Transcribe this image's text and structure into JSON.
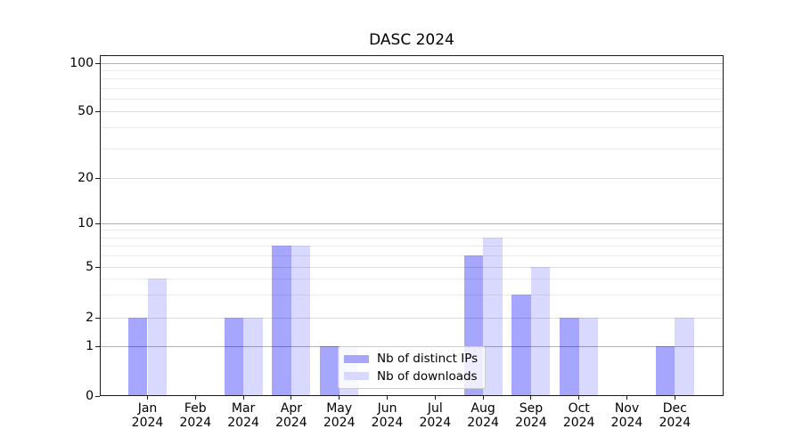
{
  "chart_data": {
    "type": "bar",
    "title": "DASC 2024",
    "categories": [
      "Jan",
      "Feb",
      "Mar",
      "Apr",
      "May",
      "Jun",
      "Jul",
      "Aug",
      "Sep",
      "Oct",
      "Nov",
      "Dec"
    ],
    "x_axis": {
      "year_line": "2024"
    },
    "y_axis": {
      "scale": "symlog-like",
      "ticks": [
        0,
        1,
        2,
        5,
        10,
        20,
        50,
        100
      ],
      "minor_ticks": [
        3,
        4,
        6,
        7,
        8,
        9,
        30,
        40,
        60,
        70,
        80,
        90
      ],
      "ylim": [
        0,
        110
      ],
      "grid": "on"
    },
    "series": [
      {
        "key": "distinct-ips",
        "name": "Nb of distinct IPs",
        "color": "#a6a6ff",
        "values": [
          2,
          0,
          2,
          7,
          1,
          0,
          0,
          6,
          3,
          2,
          0,
          1
        ]
      },
      {
        "key": "downloads",
        "name": "Nb of downloads",
        "color": "#d9d9ff",
        "values": [
          4,
          0,
          2,
          7,
          1,
          0,
          0,
          8,
          5,
          2,
          0,
          2
        ]
      }
    ],
    "legend": {
      "entries": [
        "Nb of distinct IPs",
        "Nb of downloads"
      ],
      "position": "lower center inside plot"
    }
  },
  "colors": {
    "background": "#ffffff",
    "axis": "#1a1a1a",
    "grid_decade": "#b3b3b3",
    "grid_minor": "#e8e8e8",
    "bar_distinct_ips": "#a6a6ff",
    "bar_downloads": "#d9d9ff"
  }
}
